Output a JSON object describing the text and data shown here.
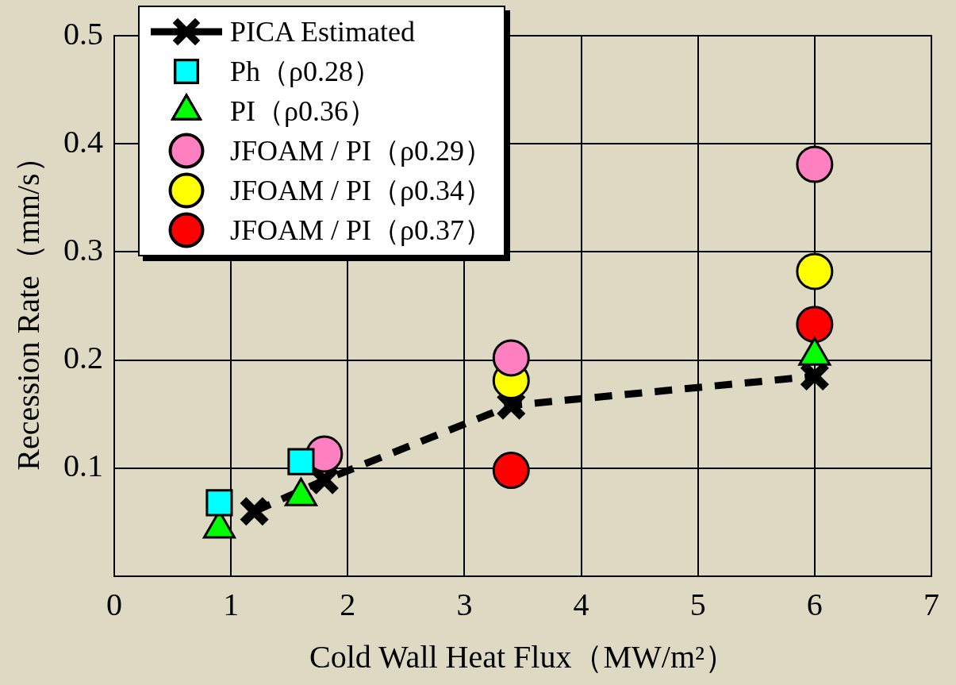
{
  "chart_data": {
    "type": "scatter",
    "xlabel": "Cold Wall Heat Flux（MW/m²）",
    "ylabel": "Recession Rate（mm/s）",
    "xlim": [
      0,
      7
    ],
    "xticks": [
      0,
      1,
      2,
      3,
      4,
      5,
      6,
      7
    ],
    "ylim": [
      0,
      0.5
    ],
    "yticks": [
      0.1,
      0.2,
      0.3,
      0.4,
      0.5
    ],
    "grid": true,
    "legend": "top left",
    "series": [
      {
        "name": "PICA Estimated",
        "type": "line",
        "color": "#000000",
        "marker": "cross",
        "line_style": "dashed",
        "x": [
          1.2,
          1.8,
          3.4,
          6.0
        ],
        "values": [
          0.06,
          0.089,
          0.158,
          0.185
        ]
      },
      {
        "name": "Ph（ρ0.28）",
        "color": "#00ffff",
        "marker": "square",
        "x": [
          0.9,
          1.6
        ],
        "values": [
          0.068,
          0.106
        ]
      },
      {
        "name": "PI（ρ0.36）",
        "color": "#00ff00",
        "marker": "triangle",
        "x": [
          0.9,
          1.6,
          6.0
        ],
        "values": [
          0.044,
          0.074,
          0.204
        ]
      },
      {
        "name": "JFOAM / PI（ρ0.29）",
        "color": "#ff80c0",
        "marker": "circle",
        "x": [
          1.8,
          3.4,
          6.0
        ],
        "values": [
          0.113,
          0.202,
          0.381
        ]
      },
      {
        "name": "JFOAM / PI（ρ0.34）",
        "color": "#ffff00",
        "marker": "circle",
        "x": [
          3.4,
          6.0
        ],
        "values": [
          0.181,
          0.282
        ]
      },
      {
        "name": "JFOAM / PI（ρ0.37）",
        "color": "#ff0000",
        "marker": "circle",
        "x": [
          3.4,
          6.0
        ],
        "values": [
          0.098,
          0.233
        ]
      }
    ]
  }
}
